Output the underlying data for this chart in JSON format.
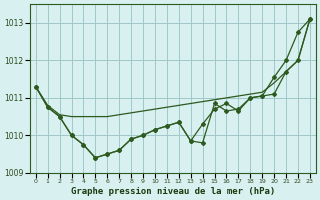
{
  "title": "Graphe pression niveau de la mer (hPa)",
  "background_color": "#d8f0f0",
  "grid_color": "#a0c8c8",
  "line_color": "#2d5a1e",
  "x_labels": [
    "0",
    "1",
    "2",
    "3",
    "4",
    "5",
    "6",
    "7",
    "8",
    "9",
    "10",
    "11",
    "12",
    "13",
    "14",
    "15",
    "16",
    "17",
    "18",
    "19",
    "20",
    "21",
    "22",
    "23"
  ],
  "ylim": [
    1009.0,
    1013.5
  ],
  "yticks": [
    1009,
    1010,
    1011,
    1012,
    1013
  ],
  "series": [
    [
      1011.3,
      1010.8,
      1010.55,
      1010.5,
      1010.5,
      1010.5,
      1010.5,
      1010.55,
      1010.6,
      1010.65,
      1010.7,
      1010.75,
      1010.8,
      1010.85,
      1010.9,
      1010.95,
      1011.0,
      1011.05,
      1011.1,
      1011.15,
      1011.4,
      1011.7,
      1012.0,
      1013.1
    ],
    [
      1011.3,
      1010.75,
      1010.5,
      1010.0,
      1009.75,
      1009.4,
      1009.5,
      1009.6,
      1009.9,
      1010.0,
      1010.15,
      1010.25,
      1010.35,
      1009.85,
      1010.3,
      1010.7,
      1010.85,
      1010.65,
      1011.0,
      1011.05,
      1011.1,
      1011.7,
      1012.0,
      1013.1
    ],
    [
      1011.3,
      1010.75,
      1010.5,
      1010.0,
      1009.75,
      1009.4,
      1009.5,
      1009.6,
      1009.9,
      1010.0,
      1010.15,
      1010.25,
      1010.35,
      1009.85,
      1009.8,
      1010.85,
      1010.65,
      1010.7,
      1011.0,
      1011.05,
      1011.55,
      1012.0,
      1012.75,
      1013.1
    ]
  ]
}
